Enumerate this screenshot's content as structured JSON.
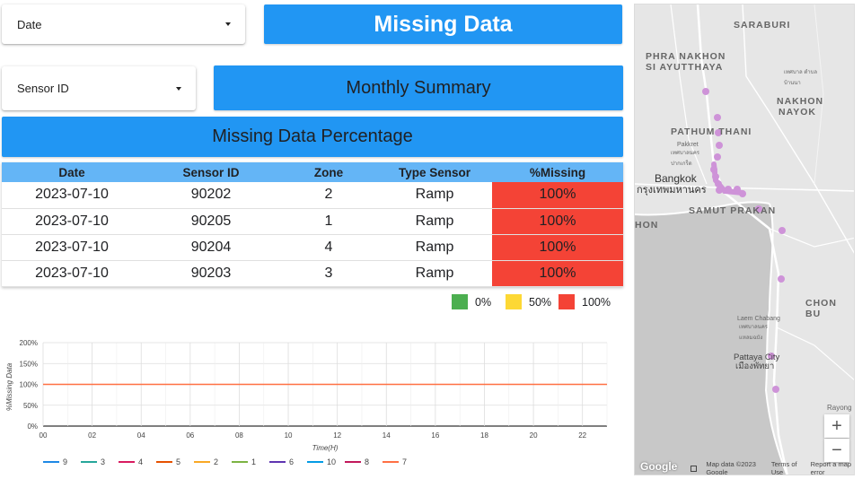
{
  "filters": {
    "date_label": "Date",
    "sensor_label": "Sensor ID"
  },
  "banners": {
    "missing_data": "Missing Data",
    "monthly_summary": "Monthly Summary",
    "missing_percentage": "Missing Data Percentage"
  },
  "table": {
    "headers": [
      "Date",
      "Sensor ID",
      "Zone",
      "Type Sensor",
      "%Missing"
    ],
    "rows": [
      [
        "2023-07-10",
        "90202",
        "2",
        "Ramp",
        "100%"
      ],
      [
        "2023-07-10",
        "90205",
        "1",
        "Ramp",
        "100%"
      ],
      [
        "2023-07-10",
        "90204",
        "4",
        "Ramp",
        "100%"
      ],
      [
        "2023-07-10",
        "90203",
        "3",
        "Ramp",
        "100%"
      ]
    ]
  },
  "color_legend": [
    {
      "label": "0%",
      "color": "#4caf50"
    },
    {
      "label": "50%",
      "color": "#fdd835"
    },
    {
      "label": "100%",
      "color": "#f44336"
    }
  ],
  "chart_data": {
    "type": "line",
    "xlabel": "Time(H)",
    "ylabel": "%Missing Data",
    "x_ticks": [
      "00",
      "02",
      "04",
      "06",
      "08",
      "10",
      "12",
      "14",
      "16",
      "18",
      "20",
      "22"
    ],
    "y_ticks": [
      "0%",
      "50%",
      "100%",
      "150%",
      "200%"
    ],
    "xlim": [
      0,
      23
    ],
    "ylim": [
      0,
      200
    ],
    "grid": true,
    "legend_position": "bottom",
    "series": [
      {
        "name": "9",
        "color": "#1e88e5"
      },
      {
        "name": "3",
        "color": "#26a69a"
      },
      {
        "name": "4",
        "color": "#d81b60"
      },
      {
        "name": "5",
        "color": "#e65100"
      },
      {
        "name": "2",
        "color": "#f9a825"
      },
      {
        "name": "1",
        "color": "#7cb342"
      },
      {
        "name": "6",
        "color": "#5e35b1"
      },
      {
        "name": "10",
        "color": "#039be5"
      },
      {
        "name": "8",
        "color": "#c2185b"
      },
      {
        "name": "7",
        "color": "#ff7043"
      }
    ],
    "visible_line": {
      "series": "7",
      "y": 100
    }
  },
  "map": {
    "labels": {
      "saraburi": "SARABURI",
      "phra_nakhon_1": "PHRA NAKHON",
      "phra_nakhon_2": "SI AYUTTHAYA",
      "nakhon_nayok_1": "NAKHON",
      "nakhon_nayok_2": "NAYOK",
      "pathum": "PATHUM THANI",
      "bangkok": "Bangkok",
      "bangkok_thai": "กรุงเทพมหานคร",
      "samut": "SAMUT PRAKAN",
      "hon": "HON",
      "chon": "CHON BU",
      "laem": "Laem Chabang",
      "pattaya": "Pattaya City",
      "pattaya_thai": "เมืองพัทยา",
      "rayong": "Rayong",
      "pakkret": "Pakkret",
      "thai1": "เทศบาล ตำบลบ้านนา",
      "thai2": "เทศบาลนคร ปากเกร็ด",
      "thai3": "เทศบาลนคร แหลมฉบัง"
    },
    "zoom_in": "+",
    "zoom_out": "−",
    "google": "Google",
    "map_data": "Map data ©2023 Google",
    "terms": "Terms of Use",
    "report": "Report a map error",
    "marker_color": "#ce93d8"
  }
}
